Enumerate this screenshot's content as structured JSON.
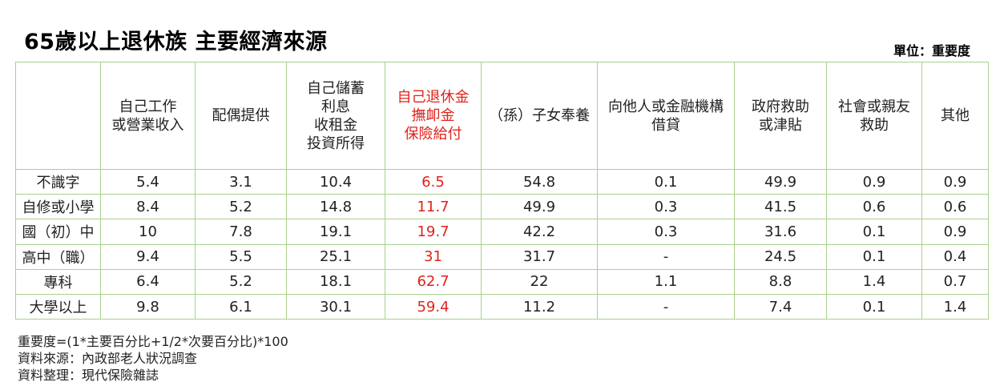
{
  "chart_data": {
    "type": "table",
    "title": "65歲以上退休族 主要經濟來源",
    "unit_label": "單位：重要度",
    "accent_color": "#e0231c",
    "border_color": "#a9d08e",
    "highlight_column_index": 3,
    "columns": [
      [
        "自己工作",
        "或營業收入"
      ],
      [
        "配偶提供"
      ],
      [
        "自己儲蓄",
        "利息",
        "收租金",
        "投資所得"
      ],
      [
        "自己退休金",
        "撫卹金",
        "保險給付"
      ],
      [
        "（孫）子女奉養"
      ],
      [
        "向他人或金融機構",
        "借貸"
      ],
      [
        "政府救助",
        "或津貼"
      ],
      [
        "社會或親友",
        "救助"
      ],
      [
        "其他"
      ]
    ],
    "rows": [
      {
        "label": "不識字",
        "values": [
          "5.4",
          "3.1",
          "10.4",
          "6.5",
          "54.8",
          "0.1",
          "49.9",
          "0.9",
          "0.9"
        ]
      },
      {
        "label": "自修或小學",
        "values": [
          "8.4",
          "5.2",
          "14.8",
          "11.7",
          "49.9",
          "0.3",
          "41.5",
          "0.6",
          "0.6"
        ]
      },
      {
        "label": "國（初）中",
        "values": [
          "10",
          "7.8",
          "19.1",
          "19.7",
          "42.2",
          "0.3",
          "31.6",
          "0.1",
          "0.9"
        ]
      },
      {
        "label": "高中（職）",
        "values": [
          "9.4",
          "5.5",
          "25.1",
          "31",
          "31.7",
          "-",
          "24.5",
          "0.1",
          "0.4"
        ]
      },
      {
        "label": "專科",
        "values": [
          "6.4",
          "5.2",
          "18.1",
          "62.7",
          "22",
          "1.1",
          "8.8",
          "1.4",
          "0.7"
        ]
      },
      {
        "label": "大學以上",
        "values": [
          "9.8",
          "6.1",
          "30.1",
          "59.4",
          "11.2",
          "-",
          "7.4",
          "0.1",
          "1.4"
        ]
      }
    ],
    "notes": [
      "重要度=(1*主要百分比+1/2*次要百分比)*100",
      "資料來源：內政部老人狀況調查",
      "資料整理：現代保險雜誌"
    ]
  }
}
